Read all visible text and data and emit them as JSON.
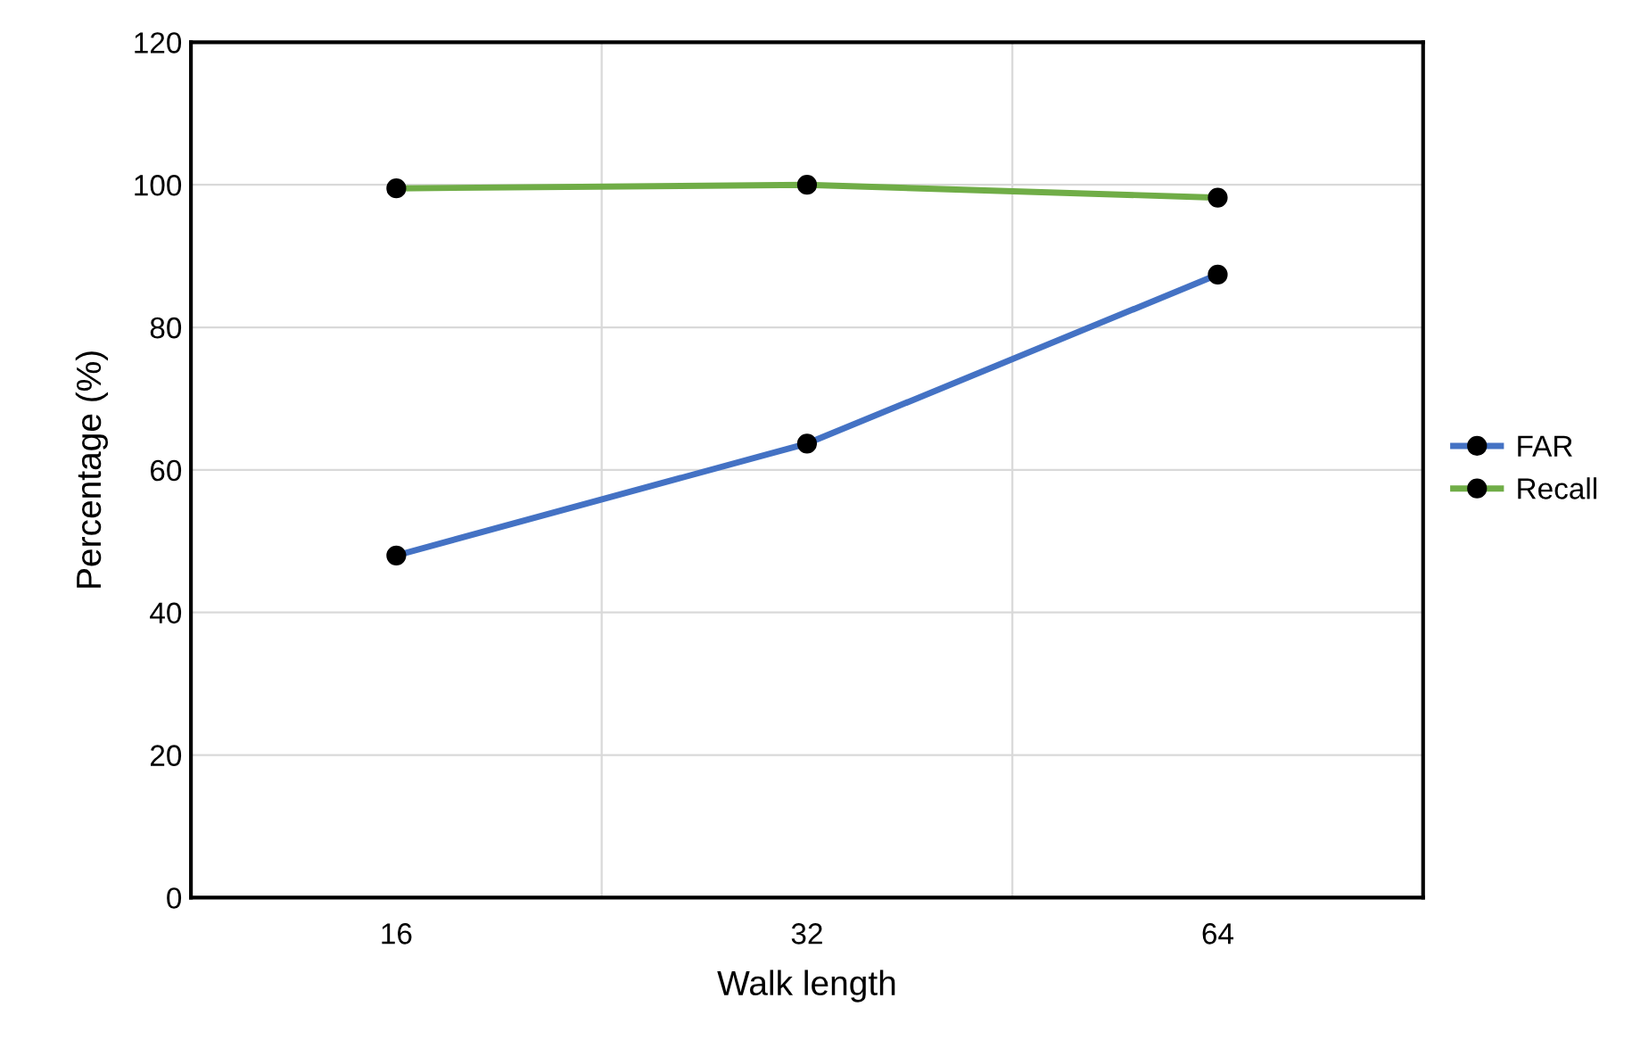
{
  "chart_data": {
    "type": "line",
    "xlabel": "Walk length",
    "ylabel": "Percentage (%)",
    "categories": [
      "16",
      "32",
      "64"
    ],
    "series": [
      {
        "name": "FAR",
        "color": "#4472c4",
        "values": [
          48,
          63.7,
          87.4
        ]
      },
      {
        "name": "Recall",
        "color": "#70ad47",
        "values": [
          99.5,
          100,
          98.2
        ]
      }
    ],
    "ylim": [
      0,
      120
    ],
    "yticks": [
      0,
      20,
      40,
      60,
      80,
      100,
      120
    ],
    "grid": true,
    "legend": "right",
    "marker": "circle",
    "line_style": "solid"
  }
}
